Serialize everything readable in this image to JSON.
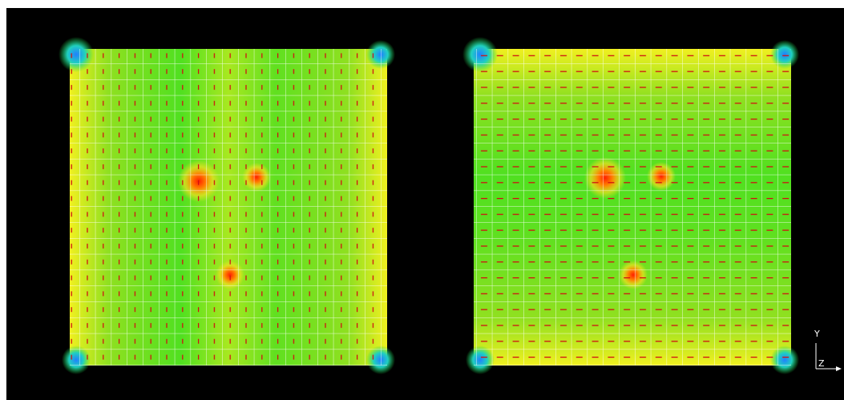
{
  "axis_triad": {
    "vertical_label": "Y",
    "depth_label": "Z"
  }
}
